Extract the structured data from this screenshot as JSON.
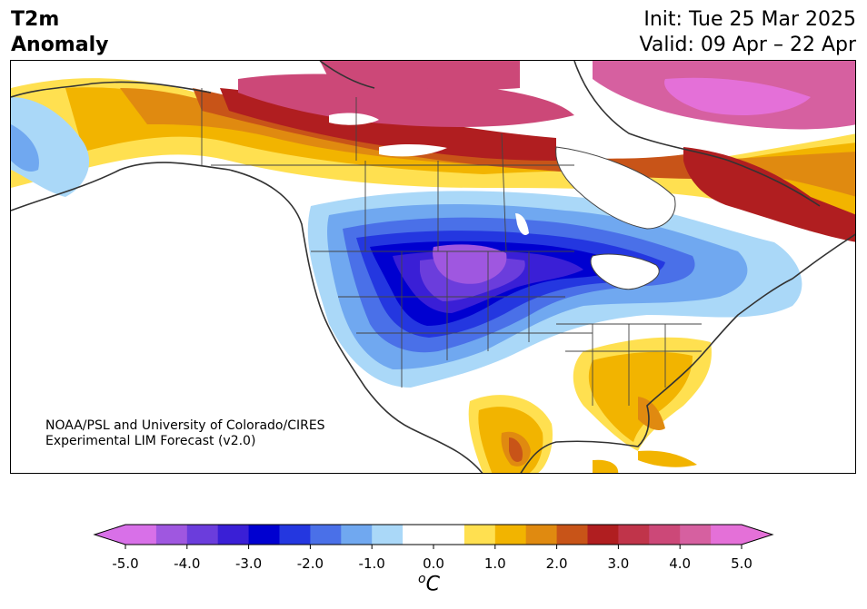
{
  "title": {
    "variable_line1": "T2m",
    "variable_line2": "Anomaly",
    "init": "Init: Tue 25 Mar 2025",
    "valid": "Valid: 09 Apr – 22 Apr"
  },
  "credit": {
    "line1": "NOAA/PSL and University of Colorado/CIRES",
    "line2": "Experimental LIM Forecast (v2.0)"
  },
  "colorbar": {
    "ticks": [
      "-5.0",
      "-4.0",
      "-3.0",
      "-2.0",
      "-1.0",
      "0.0",
      "1.0",
      "2.0",
      "3.0",
      "4.0",
      "5.0"
    ],
    "unit_symbol": "o",
    "unit_letter": "C",
    "colors": [
      "#d870e8",
      "#9f57e0",
      "#6b3ddc",
      "#3a1fd6",
      "#0000d0",
      "#2437e0",
      "#4a70e8",
      "#70a8f0",
      "#aad8f8",
      "#ffffff",
      "#ffffff",
      "#ffe050",
      "#f2b400",
      "#e08a10",
      "#c85418",
      "#b01e20",
      "#c0344a",
      "#cc4878",
      "#d660a0",
      "#e470d8"
    ],
    "under_color": "#d870e8",
    "over_color": "#e470d8"
  },
  "map_colors": {
    "ocean": "#ffffff",
    "land_neutral": "#ffffff",
    "coast": "#444444"
  }
}
